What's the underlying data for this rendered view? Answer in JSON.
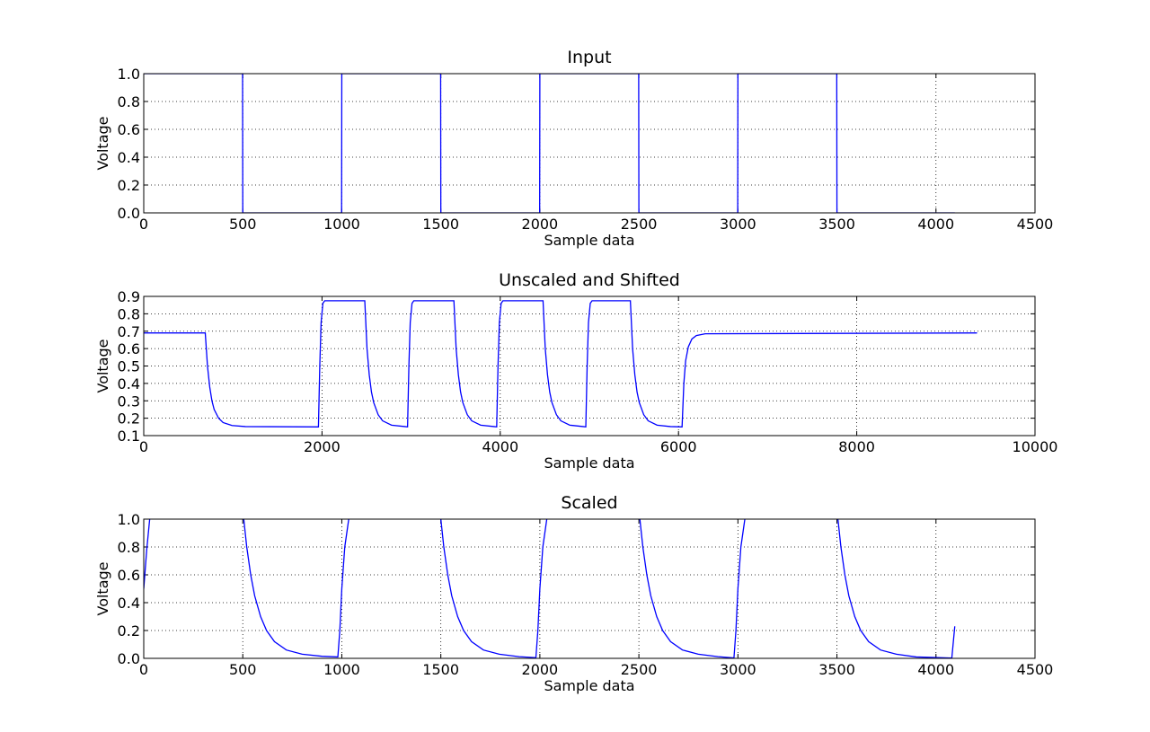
{
  "chart_data": [
    {
      "type": "line",
      "title": "Input",
      "xlabel": "Sample data",
      "ylabel": "Voltage",
      "color": "#0000ff",
      "grid": true,
      "xlim": [
        0,
        4500
      ],
      "xticks": [
        0,
        500,
        1000,
        1500,
        2000,
        2500,
        3000,
        3500,
        4000,
        4500
      ],
      "ylim": [
        0,
        1
      ],
      "yticks": [
        {
          "value": 0,
          "label": "0.0"
        },
        0.2,
        0.4,
        0.6,
        0.8,
        {
          "value": 1,
          "label": "1.0"
        }
      ],
      "x": [
        0,
        499,
        500,
        999,
        1000,
        1499,
        1500,
        1999,
        2000,
        2499,
        2500,
        2999,
        3000,
        3499,
        3500,
        4095
      ],
      "values": [
        1,
        1,
        0,
        0,
        1,
        1,
        0,
        0,
        1,
        1,
        0,
        0,
        1,
        1,
        0,
        0
      ]
    },
    {
      "type": "line",
      "title": "Unscaled and Shifted",
      "xlabel": "Sample data",
      "ylabel": "Voltage",
      "color": "#0000ff",
      "grid": true,
      "xlim": [
        0,
        10000
      ],
      "xticks": [
        0,
        2000,
        4000,
        6000,
        8000,
        10000
      ],
      "ylim": [
        0.1,
        0.9
      ],
      "yticks": [
        0.1,
        0.2,
        0.3,
        0.4,
        0.5,
        0.6,
        0.7,
        0.8,
        0.9
      ],
      "x": [
        0,
        690,
        715,
        740,
        765,
        790,
        840,
        890,
        990,
        1140,
        1960,
        1975,
        1990,
        2010,
        2030,
        2480,
        2505,
        2530,
        2555,
        2580,
        2630,
        2680,
        2780,
        2930,
        2960,
        2975,
        2990,
        3010,
        3030,
        3480,
        3505,
        3530,
        3555,
        3580,
        3630,
        3680,
        3780,
        3930,
        3960,
        3975,
        3990,
        4010,
        4030,
        4480,
        4505,
        4530,
        4555,
        4580,
        4630,
        4680,
        4780,
        4930,
        4960,
        4975,
        4990,
        5010,
        5030,
        5460,
        5485,
        5510,
        5535,
        5560,
        5610,
        5660,
        5760,
        5910,
        6040,
        6060,
        6080,
        6110,
        6150,
        6200,
        6300,
        9350
      ],
      "values": [
        0.69,
        0.69,
        0.5,
        0.38,
        0.3,
        0.25,
        0.2,
        0.175,
        0.158,
        0.152,
        0.15,
        0.5,
        0.75,
        0.86,
        0.875,
        0.875,
        0.6,
        0.45,
        0.35,
        0.29,
        0.22,
        0.185,
        0.16,
        0.152,
        0.15,
        0.5,
        0.75,
        0.86,
        0.875,
        0.875,
        0.6,
        0.45,
        0.35,
        0.29,
        0.22,
        0.185,
        0.16,
        0.152,
        0.15,
        0.5,
        0.75,
        0.86,
        0.875,
        0.875,
        0.6,
        0.45,
        0.35,
        0.29,
        0.22,
        0.185,
        0.16,
        0.152,
        0.15,
        0.5,
        0.75,
        0.86,
        0.875,
        0.875,
        0.6,
        0.45,
        0.35,
        0.29,
        0.22,
        0.185,
        0.16,
        0.152,
        0.15,
        0.4,
        0.53,
        0.61,
        0.655,
        0.675,
        0.685,
        0.69
      ]
    },
    {
      "type": "line",
      "title": "Scaled",
      "xlabel": "Sample data",
      "ylabel": "Voltage",
      "color": "#0000ff",
      "grid": true,
      "xlim": [
        0,
        4500
      ],
      "xticks": [
        0,
        500,
        1000,
        1500,
        2000,
        2500,
        3000,
        3500,
        4000,
        4500
      ],
      "ylim": [
        0,
        1
      ],
      "yticks": [
        {
          "value": 0,
          "label": "0.0"
        },
        0.2,
        0.4,
        0.6,
        0.8,
        {
          "value": 1,
          "label": "1.0"
        }
      ],
      "x": [
        0,
        15,
        30,
        250,
        505,
        520,
        540,
        560,
        590,
        620,
        660,
        720,
        800,
        900,
        980,
        990,
        1000,
        1015,
        1035,
        1250,
        1500,
        1515,
        1535,
        1555,
        1585,
        1615,
        1655,
        1715,
        1795,
        1895,
        1980,
        1990,
        2000,
        2015,
        2035,
        2250,
        2505,
        2520,
        2540,
        2560,
        2590,
        2620,
        2660,
        2720,
        2800,
        2900,
        2980,
        2990,
        3000,
        3015,
        3035,
        3250,
        3505,
        3520,
        3540,
        3560,
        3590,
        3620,
        3660,
        3720,
        3800,
        3900,
        4080,
        4095
      ],
      "values": [
        0.5,
        0.78,
        1,
        null,
        1,
        0.8,
        0.6,
        0.45,
        0.3,
        0.2,
        0.12,
        0.06,
        0.03,
        0.015,
        0.01,
        0.2,
        0.5,
        0.8,
        1,
        null,
        1,
        0.8,
        0.6,
        0.45,
        0.3,
        0.2,
        0.12,
        0.06,
        0.03,
        0.012,
        0.005,
        0.2,
        0.5,
        0.8,
        1,
        null,
        1,
        0.8,
        0.6,
        0.45,
        0.3,
        0.2,
        0.12,
        0.06,
        0.03,
        0.012,
        0.003,
        0.2,
        0.5,
        0.8,
        1,
        null,
        1,
        0.8,
        0.6,
        0.45,
        0.3,
        0.2,
        0.12,
        0.06,
        0.03,
        0.01,
        0.002,
        0.23
      ]
    }
  ]
}
